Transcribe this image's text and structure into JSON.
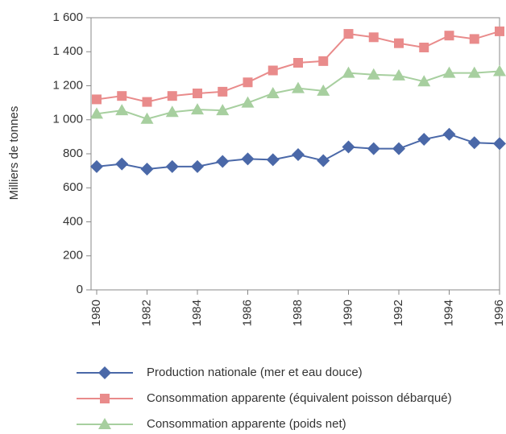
{
  "chart_data": {
    "type": "line",
    "y_label": "Milliers de tonnes",
    "x": [
      1980,
      1981,
      1982,
      1983,
      1984,
      1985,
      1986,
      1987,
      1988,
      1989,
      1990,
      1991,
      1992,
      1993,
      1994,
      1995,
      1996
    ],
    "xlim": [
      1980,
      1996
    ],
    "xticks": [
      1980,
      1982,
      1984,
      1986,
      1988,
      1990,
      1992,
      1994,
      1996
    ],
    "ylim": [
      0,
      1600
    ],
    "yticks": [
      0,
      200,
      400,
      600,
      800,
      {
        "value": 1000,
        "label": "1 000"
      },
      {
        "value": 1200,
        "label": "1 200"
      },
      {
        "value": 1400,
        "label": "1 400"
      },
      {
        "value": 1600,
        "label": "1 600"
      }
    ],
    "legend": "bottom",
    "series": [
      {
        "name": "Production nationale (mer et eau douce)",
        "color": "#4a68a8",
        "marker": "diamond",
        "values": [
          725,
          740,
          710,
          725,
          725,
          755,
          770,
          765,
          795,
          760,
          840,
          830,
          830,
          885,
          915,
          865,
          860
        ]
      },
      {
        "name": "Consommation apparente (équivalent poisson débarqué)",
        "color": "#e98b8b",
        "marker": "square",
        "values": [
          1120,
          1140,
          1105,
          1140,
          1155,
          1165,
          1220,
          1290,
          1335,
          1345,
          1505,
          1485,
          1450,
          1425,
          1495,
          1475,
          1520
        ]
      },
      {
        "name": "Consommation apparente (poids net)",
        "color": "#a7cf9f",
        "marker": "triangle",
        "values": [
          1035,
          1055,
          1005,
          1045,
          1060,
          1055,
          1100,
          1155,
          1185,
          1170,
          1275,
          1265,
          1260,
          1225,
          1275,
          1275,
          1285
        ]
      }
    ]
  }
}
